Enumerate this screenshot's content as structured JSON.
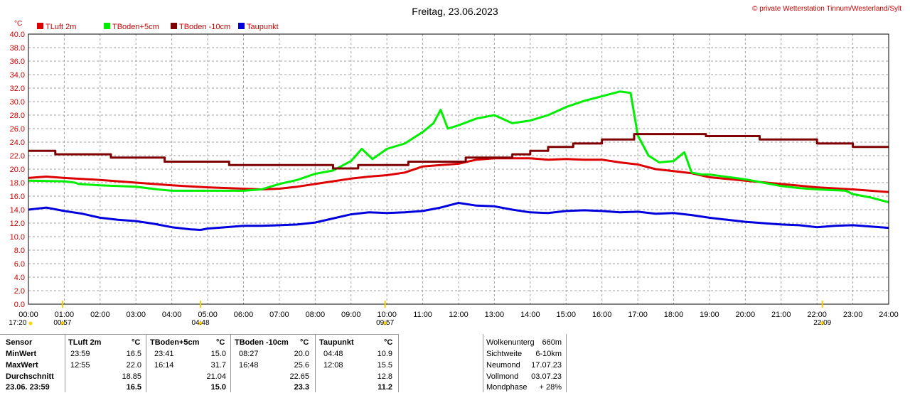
{
  "header": {
    "title": "Freitag, 23.06.2023",
    "copyright": "© private Wetterstation Tinnum/Westerland/Sylt"
  },
  "colors": {
    "tluft": "#dd0000",
    "tboden5": "#00ee00",
    "tboden10": "#800000",
    "taupunkt": "#0000dd",
    "axis_text": "#cc0000",
    "grid": "#a0a0a0"
  },
  "chart_data": {
    "type": "line",
    "ylabel": "°C",
    "ylim": [
      0,
      40
    ],
    "xlim": [
      0,
      24
    ],
    "y_ticks": [
      "0.0",
      "2.0",
      "4.0",
      "6.0",
      "8.0",
      "10.0",
      "12.0",
      "14.0",
      "16.0",
      "18.0",
      "20.0",
      "22.0",
      "24.0",
      "26.0",
      "28.0",
      "30.0",
      "32.0",
      "34.0",
      "36.0",
      "38.0",
      "40.0"
    ],
    "x_ticks": [
      "00:00",
      "01:00",
      "02:00",
      "03:00",
      "04:00",
      "05:00",
      "06:00",
      "07:00",
      "08:00",
      "09:00",
      "10:00",
      "11:00",
      "12:00",
      "13:00",
      "14:00",
      "15:00",
      "16:00",
      "17:00",
      "18:00",
      "19:00",
      "20:00",
      "21:00",
      "22:00",
      "23:00",
      "24:00"
    ],
    "sun_labels": [
      {
        "t": "17:20",
        "hour": -0.3
      },
      {
        "t": "00:57",
        "hour": 0.95
      },
      {
        "t": "04:48",
        "hour": 4.8
      },
      {
        "t": "09:57",
        "hour": 9.95
      },
      {
        "t": "22:09",
        "hour": 22.15
      }
    ],
    "legend": [
      "TLuft 2m",
      "TBoden+5cm",
      "TBoden -10cm",
      "Taupunkt"
    ],
    "series": [
      {
        "name": "TLuft 2m",
        "color": "#dd0000",
        "x": [
          0,
          0.5,
          1,
          2,
          3,
          4,
          5,
          6,
          6.5,
          7,
          7.5,
          8,
          8.5,
          9,
          9.5,
          10,
          10.5,
          11,
          11.5,
          12,
          12.5,
          13,
          13.5,
          14,
          14.5,
          15,
          15.5,
          16,
          16.5,
          17,
          17.5,
          18,
          18.5,
          19,
          20,
          21,
          22,
          23,
          24
        ],
        "y": [
          18.7,
          18.9,
          18.7,
          18.4,
          18.0,
          17.6,
          17.3,
          17.1,
          17.0,
          17.1,
          17.4,
          17.8,
          18.2,
          18.6,
          18.9,
          19.1,
          19.5,
          20.4,
          20.6,
          20.8,
          21.4,
          21.6,
          21.6,
          21.6,
          21.4,
          21.5,
          21.4,
          21.4,
          21.0,
          20.7,
          20.0,
          19.7,
          19.4,
          18.8,
          18.3,
          17.8,
          17.3,
          17.0,
          16.6
        ]
      },
      {
        "name": "TBoden+5cm",
        "color": "#00ee00",
        "x": [
          0,
          1,
          1.3,
          1.4,
          2,
          3,
          3.3,
          3.6,
          4,
          5,
          6,
          6.5,
          7,
          7.5,
          8,
          8.5,
          9,
          9.3,
          9.6,
          10,
          10.5,
          11,
          11.3,
          11.5,
          11.7,
          12,
          12.5,
          13,
          13.5,
          14,
          14.5,
          15,
          15.5,
          16,
          16.5,
          16.8,
          17,
          17.3,
          17.6,
          18,
          18.3,
          18.5,
          18.8,
          19,
          20,
          21,
          21.5,
          22,
          22.8,
          23,
          23.5,
          24
        ],
        "y": [
          18.3,
          18.2,
          18.0,
          17.8,
          17.6,
          17.4,
          17.2,
          17.0,
          16.8,
          16.8,
          16.8,
          17.0,
          17.8,
          18.4,
          19.3,
          19.8,
          21.2,
          23.0,
          21.5,
          23.0,
          23.8,
          25.5,
          26.8,
          28.8,
          26.0,
          26.5,
          27.5,
          28.0,
          26.8,
          27.2,
          28.0,
          29.2,
          30.1,
          30.8,
          31.5,
          31.3,
          25.0,
          22.0,
          21.0,
          21.2,
          22.5,
          19.5,
          19.2,
          19.2,
          18.5,
          17.5,
          17.2,
          17.0,
          16.8,
          16.3,
          15.8,
          15.1
        ]
      },
      {
        "name": "TBoden -10cm",
        "color": "#800000",
        "x": [
          0,
          0.75,
          0.75,
          2.3,
          2.3,
          3.8,
          3.8,
          5.6,
          5.6,
          8.5,
          8.5,
          9.2,
          9.2,
          10.6,
          10.6,
          12.2,
          12.2,
          13.5,
          13.5,
          14,
          14,
          14.5,
          14.5,
          15.2,
          15.2,
          16,
          16,
          16.9,
          16.9,
          18.9,
          18.9,
          20.4,
          20.4,
          22,
          22,
          23,
          23,
          24
        ],
        "y": [
          22.7,
          22.7,
          22.2,
          22.2,
          21.7,
          21.7,
          21.1,
          21.1,
          20.6,
          20.6,
          20.1,
          20.1,
          20.6,
          20.6,
          21.1,
          21.1,
          21.7,
          21.7,
          22.2,
          22.2,
          22.7,
          22.7,
          23.3,
          23.3,
          23.8,
          23.8,
          24.4,
          24.4,
          25.2,
          25.2,
          24.9,
          24.9,
          24.4,
          24.4,
          23.8,
          23.8,
          23.3,
          23.3
        ]
      },
      {
        "name": "Taupunkt",
        "color": "#0000dd",
        "x": [
          0,
          0.5,
          1,
          1.5,
          2,
          2.5,
          3,
          3.5,
          4,
          4.5,
          4.8,
          5,
          5.5,
          6,
          6.5,
          7,
          7.5,
          8,
          8.5,
          9,
          9.5,
          10,
          10.5,
          11,
          11.5,
          12,
          12.5,
          13,
          13.5,
          14,
          14.5,
          15,
          15.5,
          16,
          16.5,
          17,
          17.5,
          18,
          18.5,
          19,
          19.5,
          20,
          20.5,
          21,
          21.5,
          22,
          22.5,
          23,
          23.5,
          24
        ],
        "y": [
          14.0,
          14.3,
          13.8,
          13.4,
          12.8,
          12.5,
          12.3,
          11.9,
          11.4,
          11.1,
          11.0,
          11.2,
          11.4,
          11.6,
          11.6,
          11.7,
          11.8,
          12.1,
          12.7,
          13.3,
          13.6,
          13.5,
          13.6,
          13.8,
          14.3,
          15.0,
          14.6,
          14.5,
          14.0,
          13.6,
          13.5,
          13.8,
          13.9,
          13.8,
          13.6,
          13.7,
          13.4,
          13.5,
          13.2,
          12.8,
          12.5,
          12.2,
          12.0,
          11.8,
          11.7,
          11.4,
          11.6,
          11.7,
          11.5,
          11.3
        ]
      }
    ]
  },
  "table": {
    "row_labels": [
      "Sensor",
      "MinWert",
      "MaxWert",
      "Durchschnitt",
      "23.06. 23:59"
    ],
    "sensors": [
      {
        "name": "TLuft 2m",
        "unit": "°C",
        "min_time": "23:59",
        "min": "16.5",
        "max_time": "12:55",
        "max": "22.0",
        "avg": "18.85",
        "current": "16.5"
      },
      {
        "name": "TBoden+5cm",
        "unit": "°C",
        "min_time": "23:41",
        "min": "15.0",
        "max_time": "16:14",
        "max": "31.7",
        "avg": "21.04",
        "current": "15.0"
      },
      {
        "name": "TBoden -10cm",
        "unit": "°C",
        "min_time": "08:27",
        "min": "20.0",
        "max_time": "16:48",
        "max": "25.6",
        "avg": "22.65",
        "current": "23.3"
      },
      {
        "name": "Taupunkt",
        "unit": "°C",
        "min_time": "04:48",
        "min": "10.9",
        "max_time": "12:08",
        "max": "15.5",
        "avg": "12.8",
        "current": "11.2"
      }
    ],
    "extra": [
      {
        "label": "Wolkenunterg",
        "value": "660m"
      },
      {
        "label": "Sichtweite",
        "value": "6-10km"
      },
      {
        "label": "Neumond",
        "value": "17.07.23"
      },
      {
        "label": "Vollmond",
        "value": "03.07.23"
      },
      {
        "label": "Mondphase",
        "value": "+ 28%"
      }
    ]
  }
}
